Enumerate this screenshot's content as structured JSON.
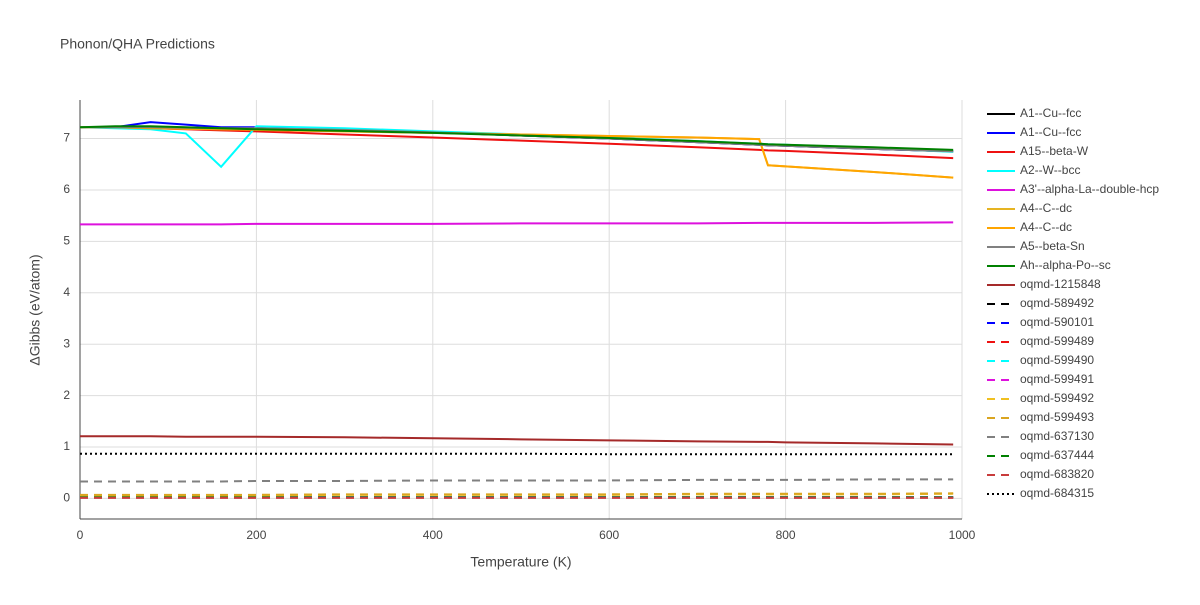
{
  "chart_data": {
    "type": "line",
    "title": "Phonon/QHA Predictions",
    "x_label": "Temperature (K)",
    "y_label": "ΔGibbs (eV/atom)",
    "xlim": [
      0,
      1000
    ],
    "ylim": [
      -0.4,
      7.75
    ],
    "xticks": [
      0,
      200,
      400,
      600,
      800,
      1000
    ],
    "yticks": [
      0,
      1,
      2,
      3,
      4,
      5,
      6,
      7
    ],
    "grid": true,
    "legend": "right",
    "x": [
      0,
      40,
      80,
      120,
      160,
      200,
      300,
      400,
      500,
      600,
      700,
      770,
      780,
      800,
      900,
      990
    ],
    "series": [
      {
        "name": "A1--Cu--fcc",
        "color": "#000000",
        "dash": "solid",
        "values": [
          7.22,
          7.22,
          7.22,
          7.21,
          7.2,
          7.2,
          7.17,
          7.12,
          7.06,
          7.0,
          6.93,
          6.88,
          6.87,
          6.86,
          6.8,
          6.75
        ]
      },
      {
        "name": "A1--Cu--fcc",
        "color": "#0000ff",
        "dash": "solid",
        "values": [
          7.22,
          7.22,
          7.32,
          7.27,
          7.22,
          7.22,
          7.17,
          7.12,
          7.06,
          7.0,
          6.93,
          6.88,
          6.87,
          6.86,
          6.8,
          6.75
        ]
      },
      {
        "name": "A15--beta-W",
        "color": "#ee1111",
        "dash": "solid",
        "values": [
          7.22,
          7.22,
          7.2,
          7.18,
          7.16,
          7.14,
          7.08,
          7.02,
          6.96,
          6.9,
          6.83,
          6.78,
          6.77,
          6.76,
          6.69,
          6.62
        ]
      },
      {
        "name": "A2--W--bcc",
        "color": "#00ffff",
        "dash": "solid",
        "values": [
          7.22,
          7.2,
          7.18,
          7.1,
          6.45,
          7.24,
          7.2,
          7.14,
          7.08,
          7.02,
          6.95,
          6.9,
          6.89,
          6.88,
          6.81,
          6.74
        ]
      },
      {
        "name": "A3'--alpha-La--double-hcp",
        "color": "#dd11dd",
        "dash": "solid",
        "values": [
          5.33,
          5.33,
          5.33,
          5.33,
          5.33,
          5.34,
          5.34,
          5.34,
          5.35,
          5.35,
          5.35,
          5.36,
          5.36,
          5.36,
          5.36,
          5.37
        ]
      },
      {
        "name": "A4--C--dc",
        "color": "#e6b422",
        "dash": "solid",
        "values": [
          7.22,
          7.22,
          7.2,
          7.19,
          7.18,
          7.17,
          7.14,
          7.11,
          7.08,
          7.05,
          7.02,
          6.99,
          6.48,
          6.46,
          6.35,
          6.24
        ]
      },
      {
        "name": "A4--C--dc",
        "color": "#ffa500",
        "dash": "solid",
        "values": [
          7.22,
          7.22,
          7.2,
          7.19,
          7.18,
          7.17,
          7.14,
          7.11,
          7.08,
          7.05,
          7.02,
          6.99,
          6.48,
          6.46,
          6.35,
          6.24
        ]
      },
      {
        "name": "A5--beta-Sn",
        "color": "#808080",
        "dash": "solid",
        "values": [
          7.22,
          7.22,
          7.22,
          7.21,
          7.2,
          7.2,
          7.17,
          7.12,
          7.06,
          7.0,
          6.93,
          6.88,
          6.87,
          6.86,
          6.8,
          6.75
        ]
      },
      {
        "name": "Ah--alpha-Po--sc",
        "color": "#008000",
        "dash": "solid",
        "values": [
          7.22,
          7.24,
          7.24,
          7.22,
          7.2,
          7.18,
          7.15,
          7.11,
          7.06,
          7.01,
          6.95,
          6.9,
          6.89,
          6.88,
          6.83,
          6.78
        ]
      },
      {
        "name": "oqmd-1215848",
        "color": "#a52a2a",
        "dash": "solid",
        "values": [
          1.21,
          1.21,
          1.21,
          1.2,
          1.2,
          1.2,
          1.19,
          1.17,
          1.15,
          1.13,
          1.11,
          1.1,
          1.1,
          1.09,
          1.07,
          1.05
        ]
      },
      {
        "name": "oqmd-589492",
        "color": "#000000",
        "dash": "dash",
        "values": [
          0.02,
          0.02,
          0.02,
          0.02,
          0.02,
          0.02,
          0.02,
          0.02,
          0.02,
          0.02,
          0.02,
          0.02,
          0.02,
          0.02,
          0.02,
          0.02
        ]
      },
      {
        "name": "oqmd-590101",
        "color": "#0000ff",
        "dash": "dash",
        "values": [
          0.02,
          0.02,
          0.02,
          0.02,
          0.02,
          0.02,
          0.02,
          0.02,
          0.02,
          0.02,
          0.02,
          0.02,
          0.02,
          0.02,
          0.02,
          0.02
        ]
      },
      {
        "name": "oqmd-599489",
        "color": "#ee1111",
        "dash": "dash",
        "values": [
          0.02,
          0.02,
          0.02,
          0.02,
          0.02,
          0.02,
          0.02,
          0.02,
          0.02,
          0.02,
          0.02,
          0.02,
          0.02,
          0.02,
          0.02,
          0.02
        ]
      },
      {
        "name": "oqmd-599490",
        "color": "#00ffff",
        "dash": "dash",
        "values": [
          0.02,
          0.02,
          0.02,
          0.02,
          0.02,
          0.02,
          0.02,
          0.02,
          0.02,
          0.02,
          0.02,
          0.02,
          0.02,
          0.02,
          0.02,
          0.02
        ]
      },
      {
        "name": "oqmd-599491",
        "color": "#dd11dd",
        "dash": "dash",
        "values": [
          0.02,
          0.02,
          0.02,
          0.02,
          0.02,
          0.02,
          0.02,
          0.02,
          0.02,
          0.02,
          0.02,
          0.02,
          0.02,
          0.02,
          0.02,
          0.02
        ]
      },
      {
        "name": "oqmd-599492",
        "color": "#f0c020",
        "dash": "dash",
        "values": [
          0.06,
          0.06,
          0.06,
          0.06,
          0.06,
          0.06,
          0.07,
          0.07,
          0.07,
          0.07,
          0.08,
          0.08,
          0.08,
          0.08,
          0.08,
          0.09
        ]
      },
      {
        "name": "oqmd-599493",
        "color": "#daa520",
        "dash": "dash",
        "values": [
          0.07,
          0.07,
          0.07,
          0.07,
          0.07,
          0.07,
          0.08,
          0.08,
          0.08,
          0.08,
          0.09,
          0.09,
          0.09,
          0.09,
          0.09,
          0.1
        ]
      },
      {
        "name": "oqmd-637130",
        "color": "#808080",
        "dash": "dash",
        "values": [
          0.33,
          0.33,
          0.33,
          0.33,
          0.33,
          0.34,
          0.34,
          0.35,
          0.35,
          0.35,
          0.36,
          0.36,
          0.36,
          0.36,
          0.37,
          0.37
        ]
      },
      {
        "name": "oqmd-637444",
        "color": "#008000",
        "dash": "dash",
        "values": [
          0.02,
          0.02,
          0.02,
          0.02,
          0.02,
          0.02,
          0.02,
          0.02,
          0.02,
          0.02,
          0.02,
          0.02,
          0.02,
          0.02,
          0.02,
          0.02
        ]
      },
      {
        "name": "oqmd-683820",
        "color": "#c83c3c",
        "dash": "dash",
        "values": [
          0.01,
          0.01,
          0.01,
          0.01,
          0.01,
          0.01,
          0.01,
          0.01,
          0.01,
          0.01,
          0.01,
          0.01,
          0.01,
          0.01,
          0.01,
          0.01
        ]
      },
      {
        "name": "oqmd-684315",
        "color": "#000000",
        "dash": "dot",
        "values": [
          0.87,
          0.87,
          0.87,
          0.87,
          0.87,
          0.87,
          0.87,
          0.87,
          0.87,
          0.86,
          0.86,
          0.86,
          0.86,
          0.86,
          0.86,
          0.86
        ]
      }
    ]
  }
}
